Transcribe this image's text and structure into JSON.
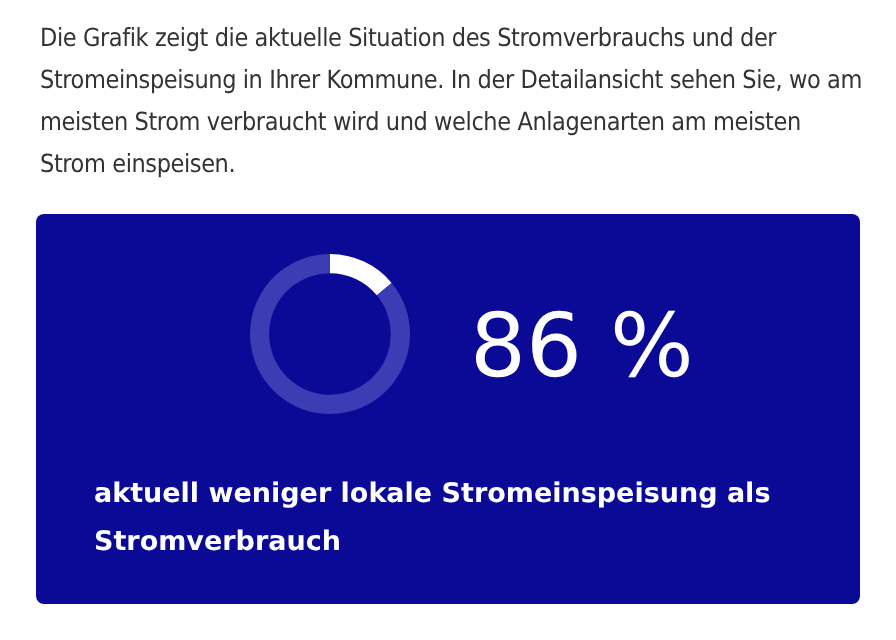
{
  "chart_data": {
    "type": "donut",
    "title": "aktuell weniger lokale Stromeinspeisung als Stromverbrauch",
    "annotations": [
      "Die Grafik zeigt die aktuelle Situation des Stromverbrauchs und der Stromeinspeisung in Ihrer Kommune. In der Detailansicht sehen Sie, wo am meisten Strom verbraucht wird und welche Anlagenarten am meisten Strom einspeisen."
    ],
    "categories": [
      null,
      null
    ],
    "values": [
      14,
      86
    ],
    "colors": [
      "#ffffff",
      "#3c3cb4"
    ],
    "value_labels": [
      null,
      "86 %"
    ],
    "legend": false
  }
}
